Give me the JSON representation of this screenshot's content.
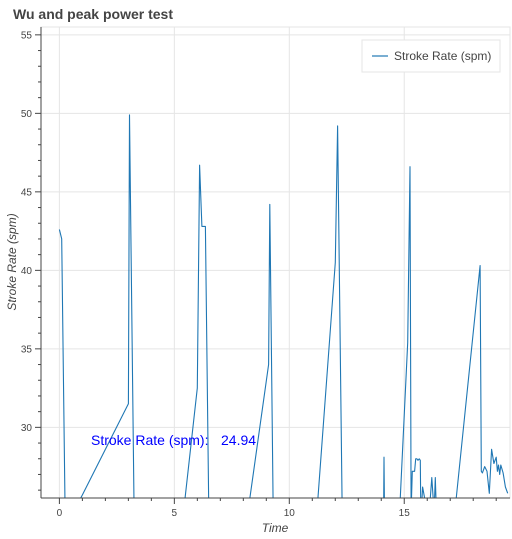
{
  "chart_data": {
    "type": "line",
    "title": "Wu and peak power test",
    "xlabel": "Time",
    "ylabel": "Stroke Rate (spm)",
    "xlim": [
      -0.8,
      19.6
    ],
    "ylim": [
      25.5,
      55.5
    ],
    "xticks": [
      0,
      5,
      10,
      15
    ],
    "yticks": [
      30,
      35,
      40,
      45,
      50,
      55
    ],
    "grid": true,
    "legend": {
      "position": "top-right",
      "entries": [
        "Stroke Rate (spm)"
      ]
    },
    "annotation": {
      "label": "Stroke Rate (spm):",
      "value": "24.94",
      "x": 1.2,
      "y": 28.7
    },
    "series": [
      {
        "name": "Stroke Rate (spm)",
        "color": "#1f77b4",
        "x": [
          0.0,
          0.1,
          0.25,
          0.6,
          1.0,
          3.0,
          3.05,
          3.25,
          3.5,
          5.4,
          6.0,
          6.1,
          6.2,
          6.35,
          6.5,
          8.2,
          9.1,
          9.15,
          9.3,
          10.0,
          11.2,
          12.0,
          12.1,
          12.3,
          12.5,
          14.1,
          14.12,
          14.14,
          14.5,
          14.8,
          15.15,
          15.25,
          15.3,
          15.35,
          15.45,
          15.5,
          15.55,
          15.6,
          15.65,
          15.7,
          15.72,
          15.74,
          15.8,
          15.9,
          16.0,
          16.1,
          16.2,
          16.3,
          16.35,
          16.4,
          16.45,
          16.6,
          17.2,
          18.3,
          18.35,
          18.4,
          18.5,
          18.6,
          18.7,
          18.8,
          18.9,
          19.0,
          19.05,
          19.1,
          19.15,
          19.2,
          19.3,
          19.4,
          19.5
        ],
        "y": [
          42.6,
          42.0,
          24.6,
          24.6,
          25.7,
          31.5,
          49.9,
          24.6,
          24.6,
          24.6,
          32.5,
          46.7,
          42.8,
          42.8,
          24.6,
          24.6,
          34.0,
          44.2,
          24.6,
          24.6,
          24.6,
          40.5,
          49.2,
          24.6,
          24.6,
          24.6,
          28.1,
          24.6,
          24.6,
          24.6,
          35.4,
          46.6,
          24.6,
          27.2,
          27.2,
          28.0,
          28.0,
          27.9,
          28.0,
          27.9,
          24.6,
          24.6,
          26.2,
          25.4,
          25.5,
          24.8,
          26.8,
          24.6,
          26.8,
          24.6,
          25.4,
          24.8,
          24.6,
          40.3,
          27.2,
          27.1,
          27.5,
          27.2,
          25.8,
          28.6,
          27.7,
          28.1,
          27.2,
          27.6,
          27.0,
          27.6,
          27.1,
          26.2,
          25.8
        ]
      }
    ]
  }
}
